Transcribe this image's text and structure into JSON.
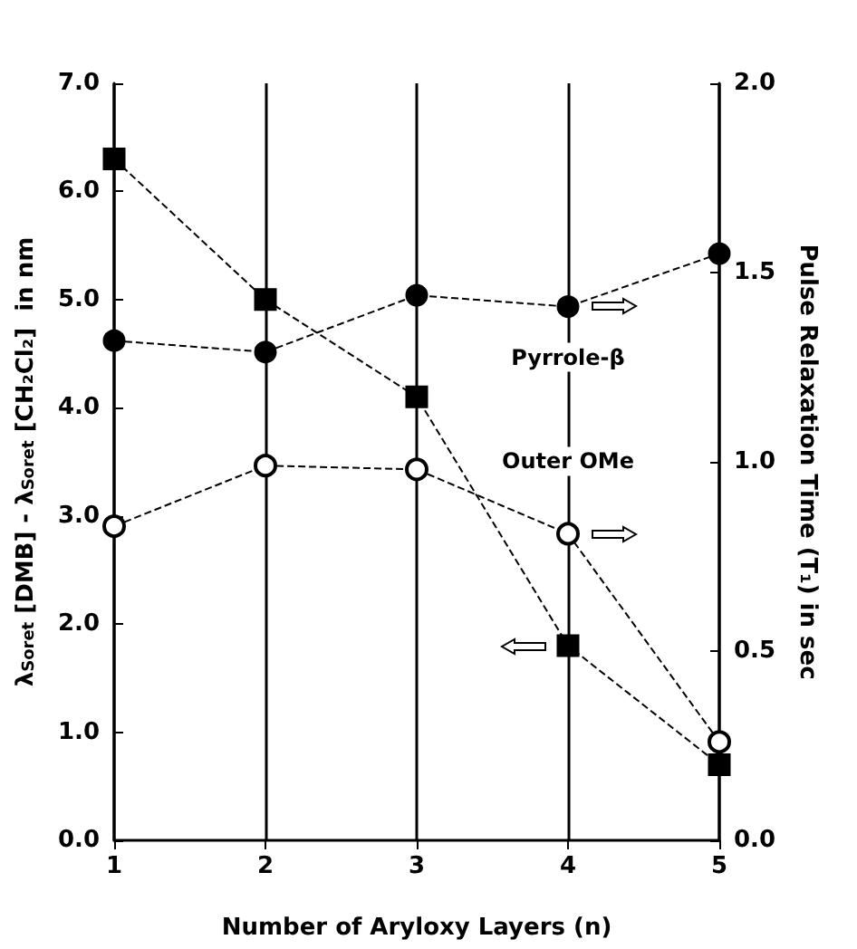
{
  "chart_data": {
    "type": "line",
    "xlabel": "Number of Aryloxy Layers (n)",
    "ylabel": "λ$_{Soret}$ [DMB] - λ$_{Soret}$ [CH₂Cl₂]  in nm",
    "y2label": "Pulse Relaxation Time (T₁) in sec",
    "x": [
      1,
      2,
      3,
      4,
      5
    ],
    "series": [
      {
        "color": "#000000",
        "marker": "square",
        "values": [
          6.3,
          5.0,
          4.1,
          1.8,
          0.7
        ]
      },
      {
        "name": "Pyrrole-β",
        "color": "#000000",
        "marker": "circle",
        "axis": "y2",
        "values": [
          1.32,
          1.29,
          1.44,
          1.41,
          1.55
        ]
      },
      {
        "name": "Outer OMe",
        "color": "#000000",
        "marker": "emptyCircle",
        "axis": "y2",
        "values": [
          0.83,
          0.99,
          0.98,
          0.81,
          0.26
        ]
      }
    ],
    "xlim": [
      1,
      5
    ],
    "xticks": [
      1,
      2,
      3,
      4,
      5
    ],
    "ylim": [
      0,
      7
    ],
    "yticks": [
      {
        "value": 0,
        "label": "0.0"
      },
      {
        "value": 1,
        "label": "1.0"
      },
      {
        "value": 2,
        "label": "2.0"
      },
      {
        "value": 3,
        "label": "3.0"
      },
      {
        "value": 4,
        "label": "4.0"
      },
      {
        "value": 5,
        "label": "5.0"
      },
      {
        "value": 6,
        "label": "6.0"
      },
      {
        "value": 7,
        "label": "7.0"
      }
    ],
    "y2lim": [
      0,
      2
    ],
    "y2ticks": [
      {
        "value": 0,
        "label": "0.0"
      },
      {
        "value": 0.5,
        "label": "0.5"
      },
      {
        "value": 1,
        "label": "1.0"
      },
      {
        "value": 1.5,
        "label": "1.5"
      },
      {
        "value": 2,
        "label": "2.0"
      }
    ],
    "grid": "x",
    "legend": false,
    "line_style": "dashed"
  }
}
